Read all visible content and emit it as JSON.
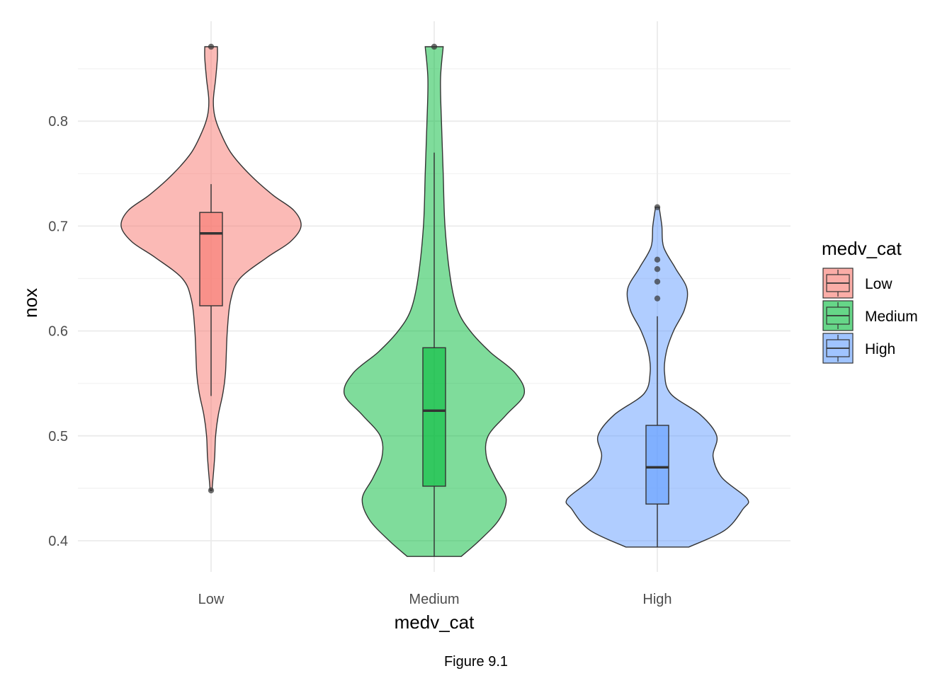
{
  "chart_data": {
    "type": "violin",
    "caption": "Figure 9.1",
    "xlabel": "medv_cat",
    "ylabel": "nox",
    "categories": [
      "Low",
      "Medium",
      "High"
    ],
    "ylim": [
      0.365,
      0.89
    ],
    "yticks": [
      0.4,
      0.5,
      0.6,
      0.7,
      0.8
    ],
    "ytick_labels": [
      "0.4",
      "0.5",
      "0.6",
      "0.7",
      "0.8"
    ],
    "grid": true,
    "legend": {
      "title": "medv_cat",
      "placement": "right",
      "entries": [
        "Low",
        "Medium",
        "High"
      ]
    },
    "colors": {
      "Low": "#F8766D",
      "Medium": "#00BA38",
      "High": "#619CFF",
      "outline": "#333333",
      "grid": "#ebebeb"
    },
    "series": [
      {
        "name": "Low",
        "box": {
          "whisker_low": 0.538,
          "q1": 0.624,
          "median": 0.693,
          "q3": 0.713,
          "whisker_high": 0.74
        },
        "outliers": [
          0.871,
          0.448
        ],
        "violin_profile": [
          [
            0.448,
            0.01
          ],
          [
            0.458,
            0.02
          ],
          [
            0.48,
            0.04
          ],
          [
            0.5,
            0.05
          ],
          [
            0.52,
            0.08
          ],
          [
            0.54,
            0.13
          ],
          [
            0.56,
            0.16
          ],
          [
            0.6,
            0.18
          ],
          [
            0.63,
            0.22
          ],
          [
            0.65,
            0.32
          ],
          [
            0.67,
            0.62
          ],
          [
            0.685,
            0.88
          ],
          [
            0.7,
            1.0
          ],
          [
            0.715,
            0.92
          ],
          [
            0.73,
            0.68
          ],
          [
            0.75,
            0.42
          ],
          [
            0.77,
            0.22
          ],
          [
            0.79,
            0.1
          ],
          [
            0.805,
            0.04
          ],
          [
            0.82,
            0.025
          ],
          [
            0.84,
            0.05
          ],
          [
            0.86,
            0.07
          ],
          [
            0.871,
            0.07
          ]
        ]
      },
      {
        "name": "Medium",
        "box": {
          "whisker_low": 0.385,
          "q1": 0.452,
          "median": 0.524,
          "q3": 0.584,
          "whisker_high": 0.77
        },
        "outliers": [
          0.871
        ],
        "violin_profile": [
          [
            0.385,
            0.3
          ],
          [
            0.4,
            0.5
          ],
          [
            0.42,
            0.72
          ],
          [
            0.44,
            0.8
          ],
          [
            0.46,
            0.68
          ],
          [
            0.48,
            0.58
          ],
          [
            0.5,
            0.6
          ],
          [
            0.52,
            0.8
          ],
          [
            0.54,
            1.0
          ],
          [
            0.56,
            0.9
          ],
          [
            0.58,
            0.62
          ],
          [
            0.6,
            0.4
          ],
          [
            0.62,
            0.26
          ],
          [
            0.65,
            0.18
          ],
          [
            0.7,
            0.12
          ],
          [
            0.75,
            0.1
          ],
          [
            0.8,
            0.08
          ],
          [
            0.84,
            0.07
          ],
          [
            0.871,
            0.1
          ]
        ]
      },
      {
        "name": "High",
        "box": {
          "whisker_low": 0.394,
          "q1": 0.435,
          "median": 0.47,
          "q3": 0.51,
          "whisker_high": 0.614
        },
        "outliers": [
          0.718,
          0.668,
          0.659,
          0.647,
          0.631
        ],
        "violin_profile": [
          [
            0.394,
            0.35
          ],
          [
            0.41,
            0.75
          ],
          [
            0.43,
            0.95
          ],
          [
            0.44,
            1.0
          ],
          [
            0.46,
            0.72
          ],
          [
            0.48,
            0.62
          ],
          [
            0.5,
            0.66
          ],
          [
            0.52,
            0.48
          ],
          [
            0.54,
            0.15
          ],
          [
            0.56,
            0.08
          ],
          [
            0.58,
            0.1
          ],
          [
            0.6,
            0.18
          ],
          [
            0.62,
            0.3
          ],
          [
            0.64,
            0.33
          ],
          [
            0.66,
            0.2
          ],
          [
            0.68,
            0.07
          ],
          [
            0.7,
            0.05
          ],
          [
            0.718,
            0.02
          ]
        ]
      }
    ]
  }
}
